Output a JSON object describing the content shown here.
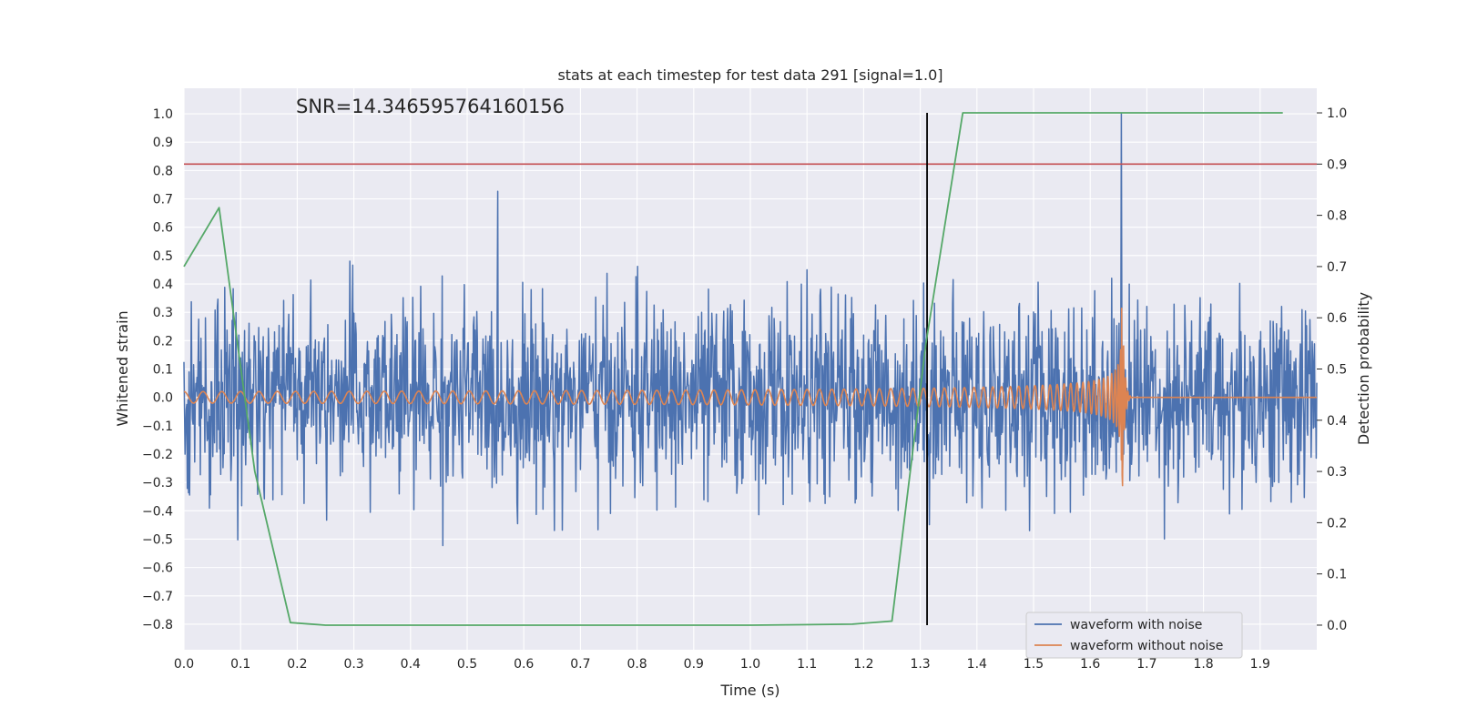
{
  "chart_data": {
    "type": "line",
    "title": "stats at each timestep for test data 291 [signal=1.0]",
    "xlabel": "Time (s)",
    "ylabel": "Whitened strain",
    "y2label": "Detection probability",
    "annotation": "SNR=14.346595764160156",
    "xlim": [
      0.0,
      2.0
    ],
    "ylim": [
      -0.89,
      1.09
    ],
    "y2lim": [
      -0.048,
      1.048
    ],
    "x_ticks": [
      0.0,
      0.1,
      0.2,
      0.3,
      0.4,
      0.5,
      0.6,
      0.7,
      0.8,
      0.9,
      1.0,
      1.1,
      1.2,
      1.3,
      1.4,
      1.5,
      1.6,
      1.7,
      1.8,
      1.9
    ],
    "x_tick_labels": [
      "0.0",
      "0.1",
      "0.2",
      "0.3",
      "0.4",
      "0.5",
      "0.6",
      "0.7",
      "0.8",
      "0.9",
      "1.0",
      "1.1",
      "1.2",
      "1.3",
      "1.4",
      "1.5",
      "1.6",
      "1.7",
      "1.8",
      "1.9"
    ],
    "y_ticks": [
      1.0,
      0.9,
      0.8,
      0.7,
      0.6,
      0.5,
      0.4,
      0.3,
      0.2,
      0.1,
      0.0,
      -0.1,
      -0.2,
      -0.3,
      -0.4,
      -0.5,
      -0.6,
      -0.7,
      -0.8
    ],
    "y_tick_labels": [
      "1.0",
      "0.9",
      "0.8",
      "0.7",
      "0.6",
      "0.5",
      "0.4",
      "0.3",
      "0.2",
      "0.1",
      "0.0",
      "−0.1",
      "−0.2",
      "−0.3",
      "−0.4",
      "−0.5",
      "−0.6",
      "−0.7",
      "−0.8"
    ],
    "y2_ticks": [
      1.0,
      0.9,
      0.8,
      0.7,
      0.6,
      0.5,
      0.4,
      0.3,
      0.2,
      0.1,
      0.0
    ],
    "y2_tick_labels": [
      "1.0",
      "0.9",
      "0.8",
      "0.7",
      "0.6",
      "0.5",
      "0.4",
      "0.3",
      "0.2",
      "0.1",
      "0.0"
    ],
    "grid": true,
    "legend_position": "bottom-right",
    "series": [
      {
        "name": "waveform with noise",
        "color": "#4c72b0",
        "description_stats": {
          "approx_min": -0.8,
          "approx_max": 1.0,
          "spike_at_x": 1.655,
          "spike_value": 1.0
        },
        "x_range": [
          0.0,
          2.0
        ]
      },
      {
        "name": "waveform without noise",
        "color": "#dd8452",
        "x_range": [
          0.0,
          2.0
        ],
        "chirp": {
          "start_amplitude": 0.04,
          "peak_x": 1.655,
          "peak_value": 0.52,
          "trough_value": -0.37,
          "zero_after": 1.675
        }
      },
      {
        "color": "#55a868",
        "axis": "right",
        "x": [
          0.0,
          0.062,
          0.125,
          0.188,
          0.25,
          0.5,
          0.75,
          1.0,
          1.18,
          1.25,
          1.31,
          1.375,
          1.94
        ],
        "y": [
          0.7,
          0.815,
          0.3,
          0.005,
          0.0,
          0.0,
          0.0,
          0.0,
          0.002,
          0.008,
          0.55,
          1.0,
          1.0
        ]
      }
    ],
    "hlines": [
      {
        "axis": "right",
        "y": 0.9,
        "color": "#c44e52"
      }
    ],
    "vlines": [
      {
        "axis": "right",
        "x": 1.312,
        "ymin": 0.0,
        "ymax": 1.0,
        "color": "#000000"
      }
    ],
    "colors": {
      "plot_background": "#eaeaf2",
      "grid": "#ffffff",
      "legend_background": "#eaeaf2",
      "legend_border": "#cccccc"
    }
  }
}
